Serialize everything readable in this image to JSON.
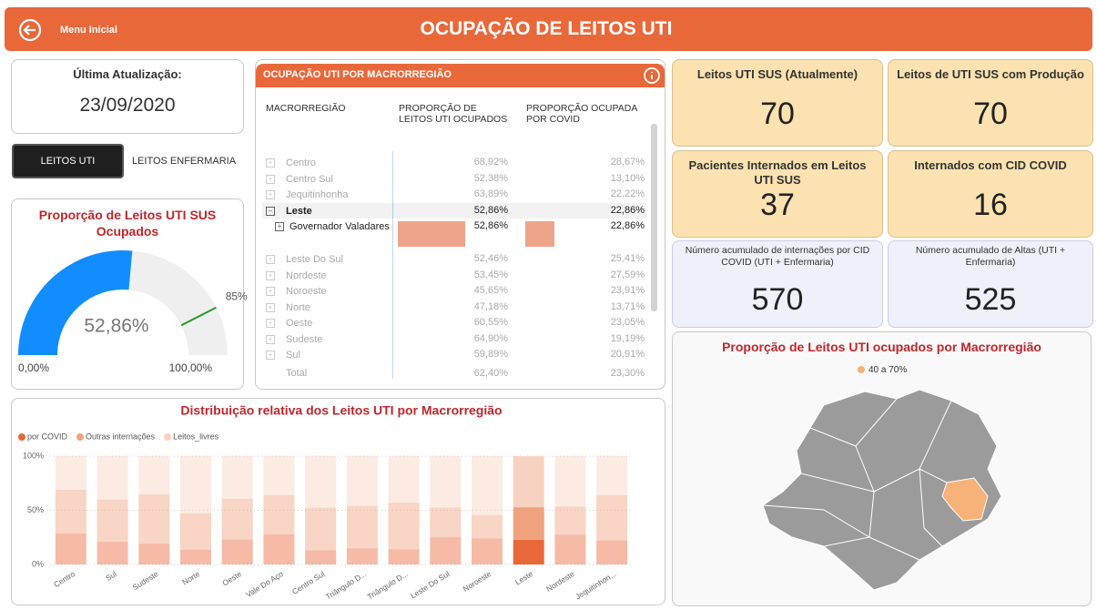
{
  "header": {
    "menu": "Menu Inicial",
    "title": "OCUPAÇÃO DE LEITOS UTI"
  },
  "update": {
    "label": "Última Atualização:",
    "date": "23/09/2020"
  },
  "tabs": [
    "LEITOS UTI",
    "LEITOS ENFERMARIA"
  ],
  "table": {
    "title": "OCUPAÇÃO UTI POR MACRORREGIÃO",
    "columns": [
      "MACRORREGIÃO",
      "PROPORÇÃO DE LEITOS UTI OCUPADOS",
      "PROPORÇÃO OCUPADA POR COVID"
    ],
    "rows": [
      [
        "Centro",
        "68,92%",
        "28,67%"
      ],
      [
        "Centro Sul",
        "52,38%",
        "13,10%"
      ],
      [
        "Jequitinhonha",
        "63,89%",
        "22,22%"
      ],
      [
        "Leste",
        "52,86%",
        "22,86%"
      ],
      [
        "Governador Valadares",
        "52,86%",
        "22,86%"
      ],
      [
        "Leste Do Sul",
        "52,46%",
        "25,41%"
      ],
      [
        "Nordeste",
        "53,45%",
        "27,59%"
      ],
      [
        "Noroeste",
        "45,65%",
        "23,91%"
      ],
      [
        "Norte",
        "47,18%",
        "13,71%"
      ],
      [
        "Oeste",
        "60,55%",
        "23,05%"
      ],
      [
        "Sudeste",
        "64,90%",
        "19,19%"
      ],
      [
        "Sul",
        "59,89%",
        "20,91%"
      ]
    ],
    "total": [
      "Total",
      "62,40%",
      "23,30%"
    ]
  },
  "cards": [
    {
      "label": "Leitos UTI SUS (Atualmente)",
      "value": "70"
    },
    {
      "label": "Leitos de UTI SUS com Produção",
      "value": "70"
    },
    {
      "label": "Pacientes Internados em Leitos UTI SUS",
      "value": "37"
    },
    {
      "label": "Internados com CID COVID",
      "value": "16"
    },
    {
      "label": "Número acumulado de internações por CID COVID (UTI + Enfermaria)",
      "value": "570"
    },
    {
      "label": "Número acumulado de Altas (UTI + Enfermaria)",
      "value": "525"
    }
  ],
  "map": {
    "title": "Proporção de Leitos UTI ocupados por Macrorregião",
    "legend": "40 a 70%",
    "color": "#f7b27a"
  },
  "chart_data": [
    {
      "type": "gauge",
      "title": "Proporção de Leitos UTI SUS Ocupados",
      "value": 52.86,
      "value_label": "52,86%",
      "min": {
        "value": 0,
        "label": "0,00%"
      },
      "max": {
        "value": 100,
        "label": "100,00%"
      },
      "target": {
        "value": 85,
        "label": "85%"
      },
      "color": "#118dff",
      "track_color": "#efefef",
      "target_color": "#2a9b2a"
    },
    {
      "type": "bar",
      "stacked": true,
      "title": "Distribuição relativa dos Leitos UTI por Macrorregião",
      "categories": [
        "Centro",
        "Sul",
        "Sudeste",
        "Norte",
        "Oeste",
        "Vale Do Aço",
        "Centro Sul",
        "Triângulo D...",
        "Triângulo D...",
        "Leste Do Sul",
        "Noroeste",
        "Leste",
        "Nordeste",
        "Jequitinhon..."
      ],
      "series": [
        {
          "name": "por COVID",
          "color": "#e8683a",
          "values": [
            28.67,
            20.91,
            19.19,
            13.71,
            23.05,
            28,
            13.1,
            15,
            14,
            25.41,
            23.91,
            22.86,
            27.59,
            22.22
          ]
        },
        {
          "name": "Outras internações",
          "color": "#f0a27f",
          "values": [
            40.25,
            38.98,
            45.71,
            33.47,
            37.5,
            36,
            39.28,
            39,
            43,
            27.05,
            21.74,
            30,
            25.86,
            41.67
          ]
        },
        {
          "name": "Leitos_livres",
          "color": "#f7d2c0",
          "values": [
            31.08,
            40.11,
            35.1,
            52.82,
            39.45,
            36,
            47.62,
            46,
            43,
            47.54,
            54.35,
            47.14,
            46.55,
            36.11
          ]
        }
      ],
      "ylim": [
        0,
        100
      ],
      "yticks": [
        {
          "value": 0,
          "label": "0%"
        },
        {
          "value": 50,
          "label": "50%"
        },
        {
          "value": 100,
          "label": "100%"
        }
      ],
      "grid": true,
      "legend": "top-left",
      "highlight": "Leste"
    }
  ]
}
